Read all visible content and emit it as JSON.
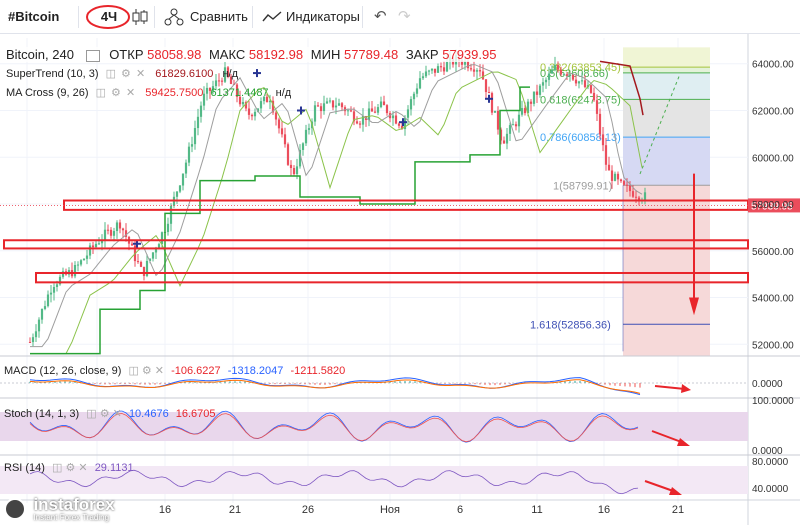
{
  "toolbar": {
    "symbol": "#Bitcoin",
    "interval": "4Ч",
    "compare": "Сравнить",
    "indicators": "Индикаторы"
  },
  "header": {
    "symbol": "Bitcoin, 240",
    "open_label": "ОТКР",
    "open": "58058.98",
    "high_label": "МАКС",
    "high": "58192.98",
    "low_label": "МИН",
    "low": "57789.48",
    "close_label": "ЗАКР",
    "close": "57939.95",
    "supertrend": "SuperTrend (10, 3)",
    "supertrend_val": "61829.6100",
    "supertrend_na": "н/д",
    "macross": "MA Cross (9, 26)",
    "macross_v1": "59425.7500",
    "macross_v2": "61371.4487",
    "macross_na": "н/д"
  },
  "chart_data": {
    "type": "candlestick",
    "symbol": "Bitcoin",
    "interval": "240",
    "ylim": [
      51500,
      65100
    ],
    "y_ticks": [
      "64000.00",
      "62000.00",
      "60000.00",
      "58000.00",
      "56000.00",
      "54000.00",
      "52000.00"
    ],
    "x_ticks": [
      "16",
      "21",
      "26",
      "Ноя",
      "6",
      "11",
      "16",
      "21"
    ],
    "last_price": "57939.95",
    "fibonacci": [
      {
        "label": "0.382(63853.45)",
        "value": 63853.45
      },
      {
        "label": "0.5(63608.66)",
        "value": 63608.66
      },
      {
        "label": "0.618(62473.75)",
        "value": 62473.75
      },
      {
        "label": "0.786(60858.13)",
        "value": 60858.13
      },
      {
        "label": "1(58799.91)",
        "value": 58799.91
      },
      {
        "label": "1.618(52856.36)",
        "value": 52856.36
      }
    ],
    "support_zones": [
      {
        "low": 57750,
        "high": 58150
      },
      {
        "low": 56100,
        "high": 56450
      },
      {
        "low": 54650,
        "high": 55050
      }
    ]
  },
  "macd": {
    "label": "MACD (12, 26, close, 9)",
    "v1": "-106.6227",
    "v2": "-1318.2047",
    "v3": "-1211.5820",
    "ticks": [
      "0.0000"
    ]
  },
  "stoch": {
    "label": "Stoch (14, 1, 3)",
    "v1": "10.4676",
    "v2": "16.6705",
    "ticks": [
      "100.0000",
      "0.0000"
    ]
  },
  "rsi": {
    "label": "RSI (14)",
    "v1": "29.1131",
    "ticks": [
      "80.0000",
      "40.0000"
    ]
  },
  "watermark": {
    "brand": "instaforex",
    "tagline": "Instant Forex Trading"
  },
  "colors": {
    "up": "#53b987",
    "down": "#eb4d5c",
    "annotation": "#e8252b",
    "supertrend_up": "#27a234",
    "supertrend_down": "#a3181d",
    "ma_fast": "#2a2e39",
    "ma_slow": "#8bc34a",
    "osc_fill": "#e9d7ec"
  }
}
